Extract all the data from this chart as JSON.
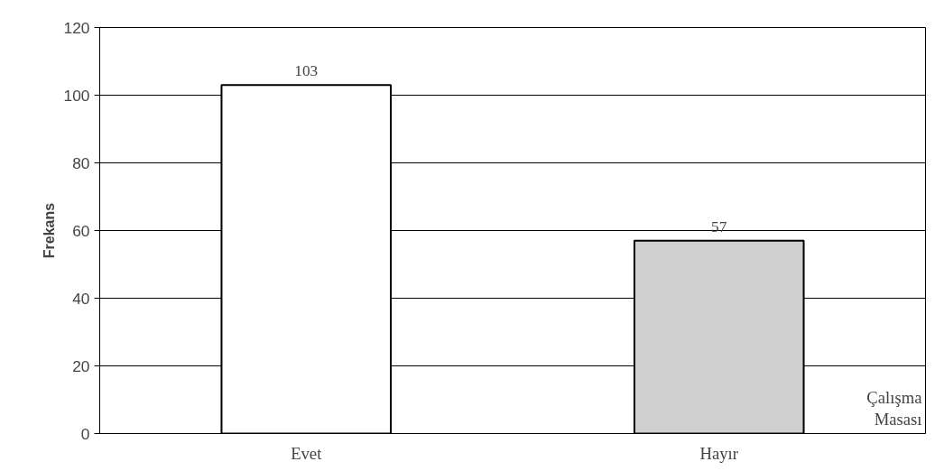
{
  "chart_data": {
    "type": "bar",
    "ylabel": "Frekans",
    "categories": [
      "Evet",
      "Hayır"
    ],
    "values": [
      103,
      57
    ],
    "colors": [
      "#ffffff",
      "#cfcfcf"
    ],
    "ylim": [
      0,
      120
    ],
    "yticks": [
      0,
      20,
      40,
      60,
      80,
      100,
      120
    ],
    "grid": "y",
    "data_labels": true,
    "annotations": [
      "Çalışma Masası"
    ]
  }
}
